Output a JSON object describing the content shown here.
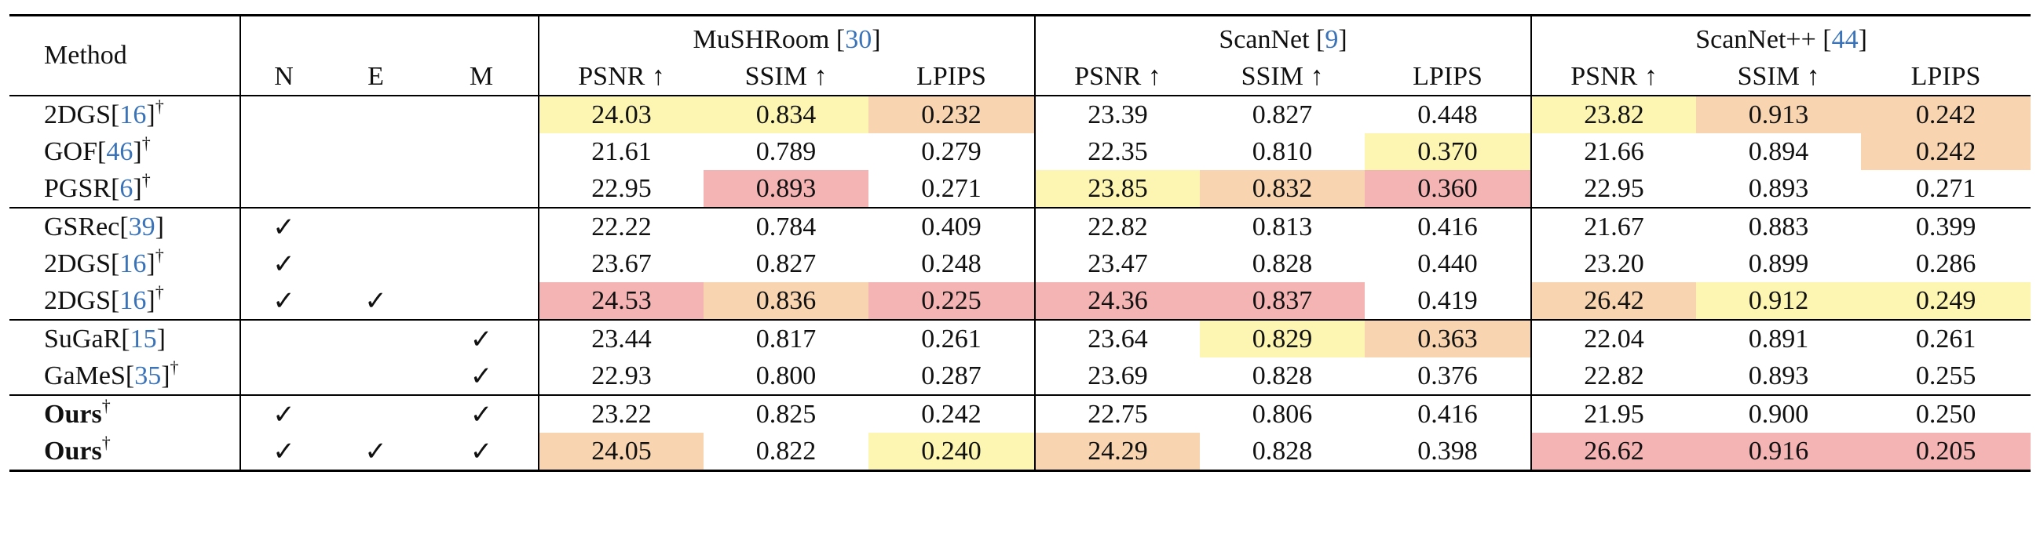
{
  "header": {
    "method": "Method",
    "flags": [
      "N",
      "E",
      "M"
    ],
    "datasets": [
      {
        "name": "MuSHRoom ",
        "cite": "30"
      },
      {
        "name": "ScanNet ",
        "cite": "9"
      },
      {
        "name": "ScanNet++ ",
        "cite": "44"
      }
    ],
    "metrics": [
      "PSNR ↑",
      "SSIM ↑",
      "LPIPS"
    ],
    "open_bracket": "[",
    "close_bracket": "]"
  },
  "rows": [
    {
      "name": "2DGS",
      "cite": "16",
      "dagger": "†",
      "bold": false,
      "N": "",
      "E": "",
      "M": "",
      "values": [
        "24.03",
        "0.834",
        "0.232",
        "23.39",
        "0.827",
        "0.448",
        "23.82",
        "0.913",
        "0.242"
      ],
      "colors": [
        "yellow",
        "yellow",
        "orange",
        "",
        "",
        "",
        "yellow",
        "orange",
        "orange"
      ]
    },
    {
      "name": "GOF",
      "cite": "46",
      "dagger": "†",
      "bold": false,
      "N": "",
      "E": "",
      "M": "",
      "values": [
        "21.61",
        "0.789",
        "0.279",
        "22.35",
        "0.810",
        "0.370",
        "21.66",
        "0.894",
        "0.242"
      ],
      "colors": [
        "",
        "",
        "",
        "",
        "",
        "yellow",
        "",
        "",
        "orange"
      ]
    },
    {
      "name": "PGSR",
      "cite": "6",
      "dagger": "†",
      "bold": false,
      "N": "",
      "E": "",
      "M": "",
      "values": [
        "22.95",
        "0.893",
        "0.271",
        "23.85",
        "0.832",
        "0.360",
        "22.95",
        "0.893",
        "0.271"
      ],
      "colors": [
        "",
        "red",
        "",
        "yellow",
        "orange",
        "red",
        "",
        "",
        ""
      ]
    },
    {
      "name": "GSRec",
      "cite": "39",
      "dagger": "",
      "bold": false,
      "N": "✓",
      "E": "",
      "M": "",
      "values": [
        "22.22",
        "0.784",
        "0.409",
        "22.82",
        "0.813",
        "0.416",
        "21.67",
        "0.883",
        "0.399"
      ],
      "colors": [
        "",
        "",
        "",
        "",
        "",
        "",
        "",
        "",
        ""
      ]
    },
    {
      "name": "2DGS",
      "cite": "16",
      "dagger": "†",
      "bold": false,
      "N": "✓",
      "E": "",
      "M": "",
      "values": [
        "23.67",
        "0.827",
        "0.248",
        "23.47",
        "0.828",
        "0.440",
        "23.20",
        "0.899",
        "0.286"
      ],
      "colors": [
        "",
        "",
        "",
        "",
        "",
        "",
        "",
        "",
        ""
      ]
    },
    {
      "name": "2DGS",
      "cite": "16",
      "dagger": "†",
      "bold": false,
      "N": "✓",
      "E": "✓",
      "M": "",
      "values": [
        "24.53",
        "0.836",
        "0.225",
        "24.36",
        "0.837",
        "0.419",
        "26.42",
        "0.912",
        "0.249"
      ],
      "colors": [
        "red",
        "orange",
        "red",
        "red",
        "red",
        "",
        "orange",
        "yellow",
        "yellow"
      ]
    },
    {
      "name": "SuGaR",
      "cite": "15",
      "dagger": "",
      "bold": false,
      "N": "",
      "E": "",
      "M": "✓",
      "values": [
        "23.44",
        "0.817",
        "0.261",
        "23.64",
        "0.829",
        "0.363",
        "22.04",
        "0.891",
        "0.261"
      ],
      "colors": [
        "",
        "",
        "",
        "",
        "yellow",
        "orange",
        "",
        "",
        ""
      ]
    },
    {
      "name": "GaMeS",
      "cite": "35",
      "dagger": "†",
      "bold": false,
      "N": "",
      "E": "",
      "M": "✓",
      "values": [
        "22.93",
        "0.800",
        "0.287",
        "23.69",
        "0.828",
        "0.376",
        "22.82",
        "0.893",
        "0.255"
      ],
      "colors": [
        "",
        "",
        "",
        "",
        "",
        "",
        "",
        "",
        ""
      ]
    },
    {
      "name": "Ours",
      "cite": "",
      "dagger": "†",
      "bold": true,
      "N": "✓",
      "E": "",
      "M": "✓",
      "values": [
        "23.22",
        "0.825",
        "0.242",
        "22.75",
        "0.806",
        "0.416",
        "21.95",
        "0.900",
        "0.250"
      ],
      "colors": [
        "",
        "",
        "",
        "",
        "",
        "",
        "",
        "",
        ""
      ]
    },
    {
      "name": "Ours",
      "cite": "",
      "dagger": "†",
      "bold": true,
      "N": "✓",
      "E": "✓",
      "M": "✓",
      "values": [
        "24.05",
        "0.822",
        "0.240",
        "24.29",
        "0.828",
        "0.398",
        "26.62",
        "0.916",
        "0.205"
      ],
      "colors": [
        "orange",
        "",
        "yellow",
        "orange",
        "",
        "",
        "red",
        "red",
        "red"
      ]
    }
  ],
  "group_starts": [
    0,
    3,
    6,
    8
  ],
  "highlight_colors": {
    "yellow": "#fcf6b2",
    "orange": "#f8d5b0",
    "red": "#f4b4b4"
  }
}
